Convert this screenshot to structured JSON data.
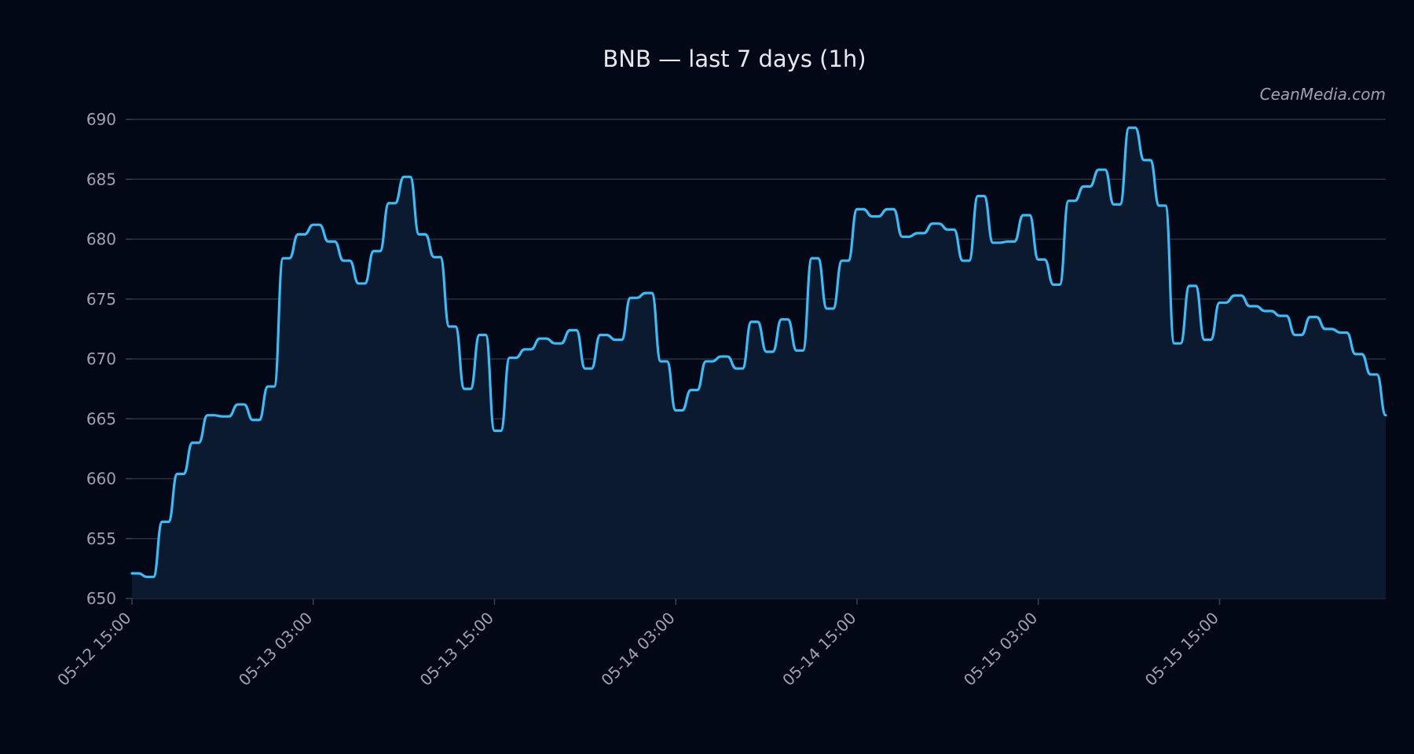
{
  "chart_data": {
    "type": "area",
    "title": "BNB — last 7 days (1h)",
    "watermark": "CeanMedia.com",
    "xlabel": "",
    "ylabel": "",
    "ylim": [
      650,
      690
    ],
    "yticks": [
      650,
      655,
      660,
      665,
      670,
      675,
      680,
      685,
      690
    ],
    "xticks": [
      {
        "label": "05-12 15:00",
        "index": 0
      },
      {
        "label": "05-13 03:00",
        "index": 12
      },
      {
        "label": "05-13 15:00",
        "index": 24
      },
      {
        "label": "05-14 03:00",
        "index": 36
      },
      {
        "label": "05-14 15:00",
        "index": 48
      },
      {
        "label": "05-15 03:00",
        "index": 60
      },
      {
        "label": "05-15 15:00",
        "index": 72
      }
    ],
    "grid": true,
    "colors": {
      "line": "#38bdf8",
      "fill": "#0b1a2e",
      "background": "#030817",
      "grid": "#2a3240"
    },
    "series": [
      {
        "values": [
          652.1,
          651.8,
          656.4,
          660.4,
          663.0,
          665.3,
          665.2,
          666.2,
          664.9,
          667.7,
          678.4,
          680.4,
          681.2,
          679.8,
          678.2,
          676.3,
          679.0,
          683.0,
          685.2,
          680.4,
          678.5,
          672.7,
          667.5,
          672.0,
          664.0,
          670.1,
          670.8,
          671.7,
          671.3,
          672.4,
          669.2,
          672.0,
          671.6,
          675.1,
          675.5,
          669.8,
          665.7,
          667.4,
          669.8,
          670.2,
          669.2,
          673.1,
          670.6,
          673.3,
          670.7,
          678.4,
          674.2,
          678.2,
          682.5,
          681.9,
          682.5,
          680.2,
          680.5,
          681.3,
          680.8,
          678.2,
          683.6,
          679.7,
          679.8,
          682.0,
          678.3,
          676.2,
          683.2,
          684.4,
          685.8,
          682.9,
          689.3,
          686.6,
          682.8,
          671.3,
          676.1,
          671.6,
          674.7,
          675.3,
          674.4,
          674.0,
          673.6,
          672.0,
          673.5,
          672.5,
          672.2,
          670.4,
          668.7,
          665.3
        ]
      }
    ]
  }
}
